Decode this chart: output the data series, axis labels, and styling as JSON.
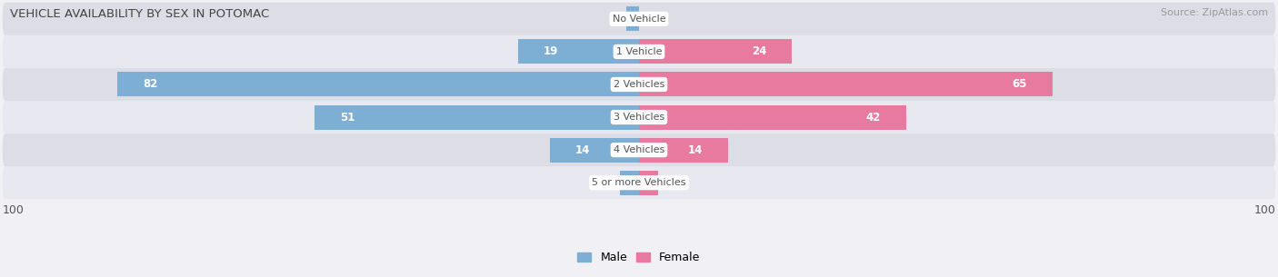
{
  "title": "VEHICLE AVAILABILITY BY SEX IN POTOMAC",
  "source": "Source: ZipAtlas.com",
  "categories": [
    "No Vehicle",
    "1 Vehicle",
    "2 Vehicles",
    "3 Vehicles",
    "4 Vehicles",
    "5 or more Vehicles"
  ],
  "male_values": [
    2,
    19,
    82,
    51,
    14,
    3
  ],
  "female_values": [
    0,
    24,
    65,
    42,
    14,
    3
  ],
  "male_color": "#7daed4",
  "female_color": "#e87a9f",
  "row_bg_colors": [
    "#e8e8f0",
    "#dddde6"
  ],
  "max_value": 100,
  "label_color_dark": "#555555",
  "label_color_white": "#ffffff",
  "title_color": "#444444",
  "source_color": "#999999",
  "center_label_color": "#555555",
  "background_color": "#f0f0f5"
}
